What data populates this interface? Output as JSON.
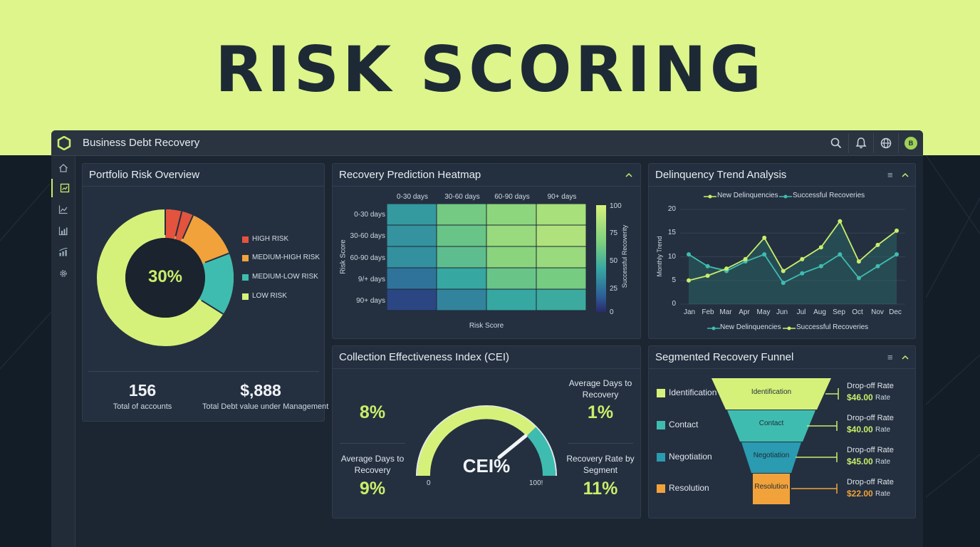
{
  "hero": {
    "title": "RISK SCORING"
  },
  "app": {
    "title": "Business Debt Recovery",
    "avatar_initial": "B"
  },
  "topbar_icons": [
    "search-icon",
    "bell-icon",
    "globe-icon"
  ],
  "sidebar_icons": [
    "home-icon",
    "dashboard-icon",
    "line-chart-icon",
    "bar-chart-icon",
    "analytics-icon",
    "gear-icon"
  ],
  "portfolio": {
    "title": "Portfolio Risk Overview",
    "center_label": "30%",
    "legend": [
      {
        "label": "HIGH RISK",
        "color": "#e4533d"
      },
      {
        "label": "MEDIUM-HIGH RISK",
        "color": "#f2a23b"
      },
      {
        "label": "MEDIUM-LOW RISK",
        "color": "#3fbcb0"
      },
      {
        "label": "LOW RISK",
        "color": "#d6f17a"
      }
    ],
    "stats": [
      {
        "value": "156",
        "label": "Total of accounts"
      },
      {
        "value": "$,888",
        "label": "Total Debt value under Management"
      }
    ]
  },
  "heatmap": {
    "title": "Recovery Prediction Heatmap",
    "col_labels": [
      "0-30 days",
      "30-60 days",
      "60-90 days",
      "90+ days"
    ],
    "row_labels": [
      "0-30 days",
      "30-60 days",
      "60-90 days",
      "9/+ days",
      "90+ days"
    ],
    "ylabel": "Risk Score",
    "xlabel": "Risk Score",
    "scale_label": "Successful Recoverity",
    "scale_ticks": [
      "100",
      "75",
      "50",
      "25",
      "0"
    ],
    "cells": [
      [
        35,
        62,
        72,
        82
      ],
      [
        33,
        58,
        76,
        85
      ],
      [
        32,
        54,
        70,
        76
      ],
      [
        22,
        40,
        58,
        63
      ],
      [
        8,
        28,
        40,
        42
      ]
    ]
  },
  "trend": {
    "title": "Delinquency Trend Analysis",
    "ylabel": "Monthly Trend",
    "y_ticks": [
      "20",
      "15",
      "10",
      "5",
      "0"
    ],
    "months": [
      "Jan",
      "Feb",
      "Mar",
      "Apr",
      "May",
      "Jun",
      "Jul",
      "Aug",
      "Sep",
      "Oct",
      "Nov",
      "Dec"
    ],
    "legend_top": [
      "New Delinquencies",
      "Successful Recoveries"
    ],
    "legend_bottom": [
      "New Delinquencies",
      "Successful Recoveries"
    ],
    "series_green": [
      5,
      6,
      7.5,
      9.5,
      14,
      7,
      9.5,
      12,
      17.5,
      9,
      12.5,
      15.5
    ],
    "series_teal": [
      10.5,
      8,
      7,
      9,
      10.5,
      4.5,
      6.5,
      8,
      10.5,
      5.5,
      8,
      10.5
    ],
    "colors": {
      "green": "#c9ee6a",
      "teal": "#3fbcb0"
    }
  },
  "cei": {
    "title": "Collection Effectiveness Index (CEI)",
    "top_left_value": "8%",
    "top_right_label": "Average Days to Recovery",
    "top_right_value": "1%",
    "bottom_left_label": "Average Days to Recovery",
    "bottom_left_value": "9%",
    "bottom_right_label": "Recovery Rate by Segment",
    "bottom_right_value": "11%",
    "gauge_label": "CEI%",
    "gauge_min": "0",
    "gauge_max": "100!"
  },
  "funnel": {
    "title": "Segmented Recovery Funnel",
    "stages": [
      {
        "name": "Identification",
        "color": "#d6f17a",
        "drop_label": "Drop-off Rate",
        "drop_value": "$46.00",
        "drop_suffix": "Rate"
      },
      {
        "name": "Contact",
        "color": "#3fbcb0",
        "drop_label": "Drop-off Rate",
        "drop_value": "$40.00",
        "drop_suffix": "Rate"
      },
      {
        "name": "Negotiation",
        "color": "#2a9bb0",
        "drop_label": "Drop-off Rate",
        "drop_value": "$45.00",
        "drop_suffix": "Rate"
      },
      {
        "name": "Resolution",
        "color": "#f2a23b",
        "drop_label": "Drop-off Rate",
        "drop_value": "$22.00",
        "drop_suffix": "Rate"
      }
    ]
  }
}
